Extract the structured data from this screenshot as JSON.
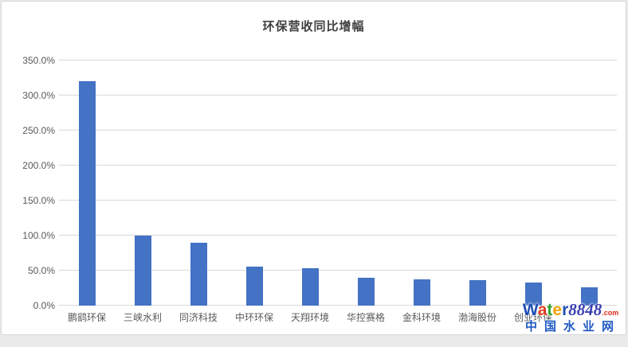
{
  "chart_data": {
    "type": "bar",
    "title": "环保营收同比增幅",
    "categories": [
      "鹏鹞环保",
      "三峡水利",
      "同济科技",
      "中环环保",
      "天翔环境",
      "华控赛格",
      "金科环境",
      "渤海股份",
      "创业环保",
      ""
    ],
    "values": [
      320,
      100,
      90,
      56,
      53,
      40,
      37,
      36,
      33,
      26
    ],
    "value_unit": "%",
    "xlabel": "",
    "ylabel": "",
    "ylim": [
      0,
      350
    ],
    "ytick_labels": [
      "0.0%",
      "50.0%",
      "100.0%",
      "150.0%",
      "200.0%",
      "250.0%",
      "300.0%",
      "350.0%"
    ],
    "grid": "horizontal",
    "legend": "none",
    "bar_color": "#4472C4",
    "gridline_color": "#D9D9D9",
    "axis_label_color": "#595959",
    "title_color": "#404040"
  },
  "watermark": {
    "brand": "Water8848",
    "brand_letter_colors": [
      "#1F4DB5",
      "#E13B1F",
      "#31A231",
      "#F0A20A",
      "#1F4DB5",
      "#3A3DB0",
      "#3A3DB0",
      "#3A3DB0",
      "#3A3DB0"
    ],
    "domain_suffix": ".com",
    "domain_suffix_color": "#E02A1A",
    "site_name": "中国水业网",
    "site_name_color": "#1F5AC4"
  }
}
